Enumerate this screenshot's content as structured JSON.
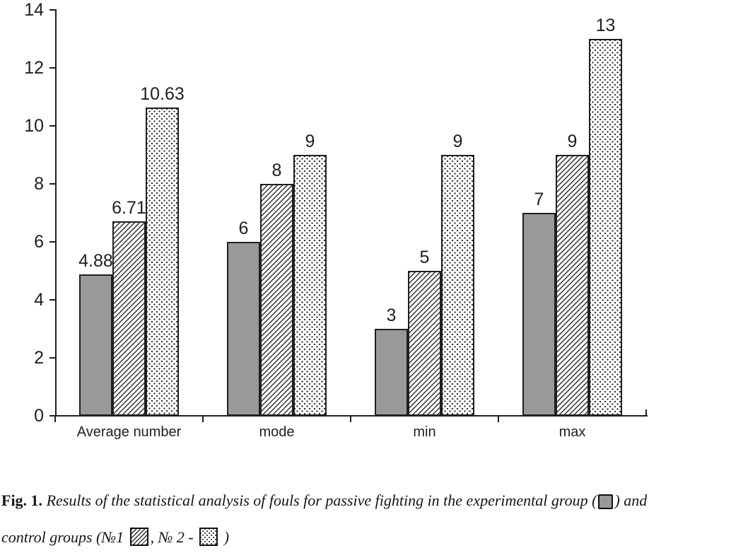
{
  "colors": {
    "ink": "#1f1f1f",
    "bar_gray": "#999999",
    "background": "#ffffff"
  },
  "chart_data": {
    "type": "bar",
    "title": "",
    "categories": [
      "Average number",
      "mode",
      "min",
      "max"
    ],
    "series": [
      {
        "name": "experimental group",
        "pattern": "solid-gray",
        "values": [
          4.88,
          6,
          3,
          7
        ],
        "labels": [
          "4.88",
          "6",
          "3",
          "7"
        ]
      },
      {
        "name": "control group №1",
        "pattern": "diagonal-hatch",
        "values": [
          6.71,
          8,
          5,
          9
        ],
        "labels": [
          "6.71",
          "8",
          "5",
          "9"
        ]
      },
      {
        "name": "control group № 2",
        "pattern": "dots",
        "values": [
          10.63,
          9,
          9,
          13
        ],
        "labels": [
          "10.63",
          "9",
          "9",
          "13"
        ]
      }
    ],
    "xlabel": "",
    "ylabel": "",
    "ylim": [
      0,
      14
    ],
    "yticks": [
      "0",
      "2",
      "4",
      "6",
      "8",
      "10",
      "12",
      "14"
    ],
    "grid": false,
    "legend_position": "none"
  },
  "caption": {
    "prefix": "Fig. 1.",
    "line1_text": " Results of the statistical analysis of fouls for passive fighting in the experimental group (",
    "line1_end": ") and",
    "line2_start": "control groups (№1 ",
    "line2_mid": ", № 2 - ",
    "line2_end": " )",
    "swatches": {
      "experimental": "gray-filled-square-icon",
      "control1": "diagonal-hatched-square-icon",
      "control2": "dotted-square-icon"
    }
  }
}
